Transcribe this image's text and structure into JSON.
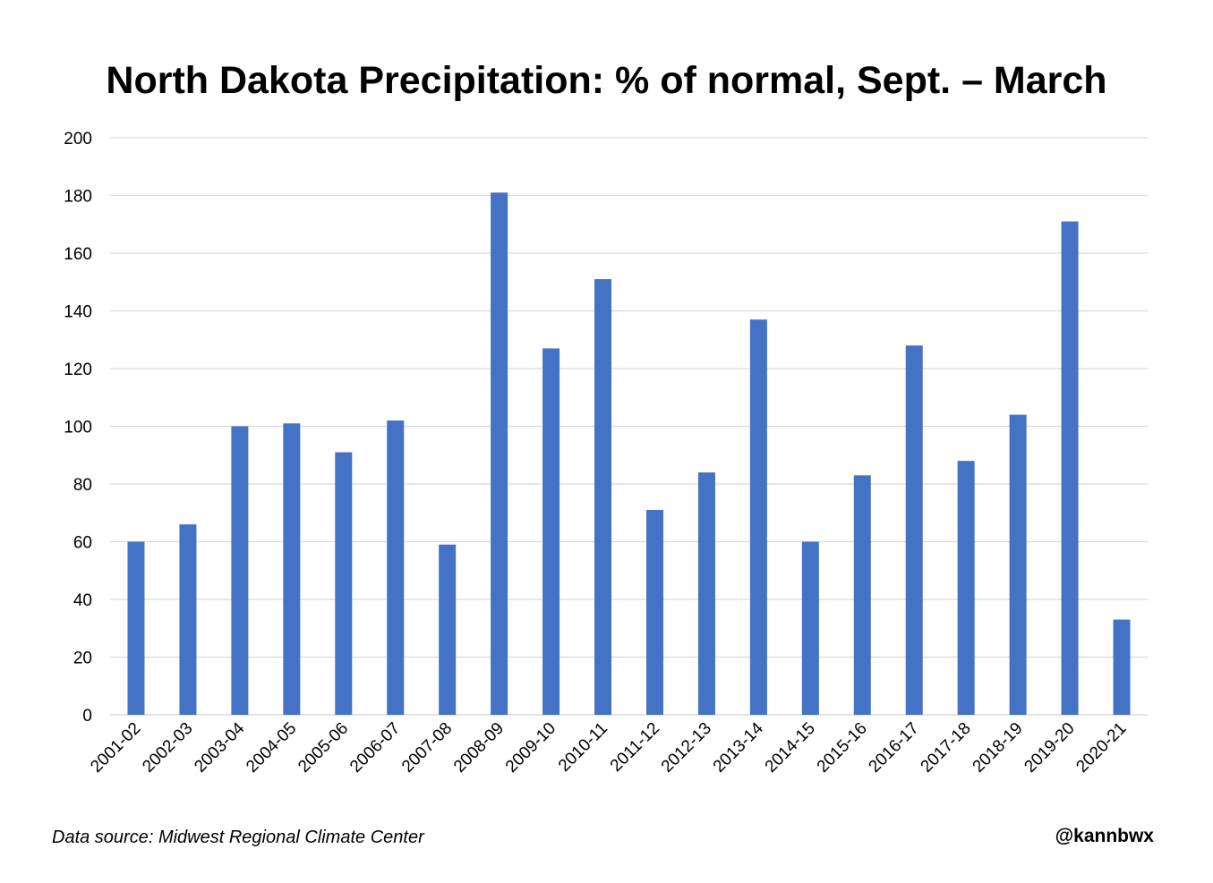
{
  "chart_data": {
    "type": "bar",
    "title": "North Dakota Precipitation: % of normal, Sept. – March",
    "categories": [
      "2001-02",
      "2002-03",
      "2003-04",
      "2004-05",
      "2005-06",
      "2006-07",
      "2007-08",
      "2008-09",
      "2009-10",
      "2010-11",
      "2011-12",
      "2012-13",
      "2013-14",
      "2014-15",
      "2015-16",
      "2016-17",
      "2017-18",
      "2018-19",
      "2019-20",
      "2020-21"
    ],
    "values": [
      60,
      66,
      100,
      101,
      91,
      102,
      59,
      181,
      127,
      151,
      71,
      84,
      137,
      60,
      83,
      128,
      88,
      104,
      171,
      33
    ],
    "ylim": [
      0,
      200
    ],
    "yticks": [
      "0",
      "20",
      "40",
      "60",
      "80",
      "100",
      "120",
      "140",
      "160",
      "180",
      "200"
    ],
    "xlabel": "",
    "ylabel": "",
    "grid": true,
    "bar_color": "#4472C4",
    "grid_color": "#D9D9D9"
  },
  "footer": {
    "source": "Data source: Midwest Regional Climate Center",
    "handle": "@kannbwx"
  }
}
